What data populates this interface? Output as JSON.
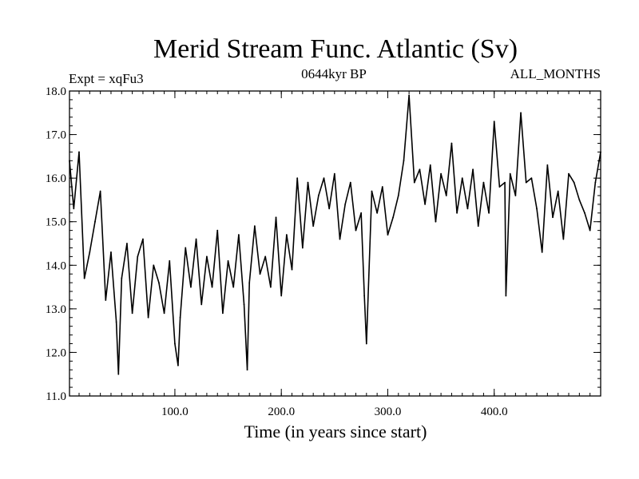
{
  "chart_data": {
    "type": "line",
    "title": "Merid Stream Func. Atlantic (Sv)",
    "subtitle_left": "Expt = xqFu3",
    "subtitle_center": "0644kyr BP",
    "subtitle_right": "ALL_MONTHS",
    "xlabel": "Time (in years since start)",
    "ylabel": "",
    "xlim": [
      1,
      500
    ],
    "ylim": [
      11.0,
      18.0
    ],
    "xticks": [
      100,
      200,
      300,
      400
    ],
    "xtick_labels": [
      "100.0",
      "200.0",
      "300.0",
      "400.0"
    ],
    "yticks": [
      11,
      12,
      13,
      14,
      15,
      16,
      17,
      18
    ],
    "ytick_labels": [
      "11.0",
      "12.0",
      "13.0",
      "14.0",
      "15.0",
      "16.0",
      "17.0",
      "18.0"
    ],
    "series": [
      {
        "name": "Merid Stream Func.",
        "color": "#000000",
        "x": [
          1,
          5,
          10,
          15,
          20,
          25,
          30,
          35,
          40,
          45,
          47,
          50,
          55,
          60,
          65,
          70,
          75,
          80,
          85,
          90,
          95,
          100,
          103,
          105,
          110,
          115,
          120,
          125,
          130,
          135,
          140,
          145,
          150,
          155,
          160,
          165,
          168,
          170,
          175,
          180,
          185,
          190,
          195,
          200,
          205,
          210,
          215,
          220,
          225,
          230,
          235,
          240,
          245,
          250,
          255,
          260,
          265,
          270,
          275,
          278,
          280,
          285,
          290,
          295,
          300,
          305,
          310,
          315,
          320,
          325,
          330,
          335,
          340,
          345,
          350,
          355,
          360,
          365,
          370,
          375,
          380,
          385,
          390,
          395,
          400,
          405,
          410,
          411,
          415,
          420,
          425,
          430,
          435,
          440,
          445,
          450,
          455,
          460,
          465,
          470,
          475,
          480,
          485,
          490,
          495,
          500
        ],
        "values": [
          16.4,
          15.3,
          16.6,
          13.7,
          14.3,
          15.0,
          15.7,
          13.2,
          14.3,
          12.7,
          11.5,
          13.7,
          14.5,
          12.9,
          14.2,
          14.6,
          12.8,
          14.0,
          13.6,
          12.9,
          14.1,
          12.2,
          11.7,
          12.8,
          14.4,
          13.5,
          14.6,
          13.1,
          14.2,
          13.5,
          14.8,
          12.9,
          14.1,
          13.5,
          14.7,
          13.1,
          11.6,
          13.6,
          14.9,
          13.8,
          14.2,
          13.5,
          15.1,
          13.3,
          14.7,
          13.9,
          16.0,
          14.4,
          15.9,
          14.9,
          15.6,
          16.0,
          15.3,
          16.1,
          14.6,
          15.4,
          15.9,
          14.8,
          15.2,
          13.3,
          12.2,
          15.7,
          15.2,
          15.8,
          14.7,
          15.1,
          15.6,
          16.4,
          17.9,
          15.9,
          16.2,
          15.4,
          16.3,
          15.0,
          16.1,
          15.6,
          16.8,
          15.2,
          16.0,
          15.3,
          16.2,
          14.9,
          15.9,
          15.2,
          17.3,
          15.8,
          15.9,
          13.3,
          16.1,
          15.6,
          17.5,
          15.9,
          16.0,
          15.3,
          14.3,
          16.3,
          15.1,
          15.7,
          14.6,
          16.1,
          15.9,
          15.5,
          15.2,
          14.8,
          15.9,
          16.6
        ]
      }
    ]
  }
}
